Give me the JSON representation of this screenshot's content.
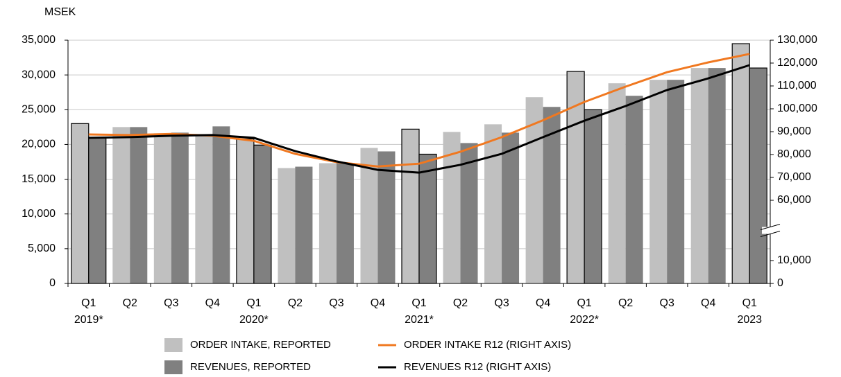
{
  "chart_data": {
    "type": "bar",
    "unit_label": "MSEK",
    "categories": [
      "Q1",
      "Q2",
      "Q3",
      "Q4",
      "Q1",
      "Q2",
      "Q3",
      "Q4",
      "Q1",
      "Q2",
      "Q3",
      "Q4",
      "Q1",
      "Q2",
      "Q3",
      "Q4",
      "Q1"
    ],
    "category_years": [
      "2019*",
      null,
      null,
      null,
      "2020*",
      null,
      null,
      null,
      "2021*",
      null,
      null,
      null,
      "2022*",
      null,
      null,
      null,
      "2023"
    ],
    "series": [
      {
        "name": "ORDER INTAKE, REPORTED",
        "type": "bar",
        "color": "#c0c0c0",
        "values": [
          23000,
          22500,
          21600,
          21500,
          20800,
          16600,
          17300,
          19500,
          22200,
          21800,
          22900,
          26800,
          30500,
          28800,
          29300,
          31000,
          34500
        ]
      },
      {
        "name": "REVENUES, REPORTED",
        "type": "bar",
        "color": "#808080",
        "values": [
          21000,
          22500,
          21700,
          22600,
          19900,
          16800,
          17300,
          19000,
          18600,
          20200,
          21700,
          25400,
          25000,
          27000,
          29300,
          31000,
          31000
        ]
      },
      {
        "name": "ORDER INTAKE R12 (RIGHT AXIS)",
        "type": "line",
        "axis": "y2",
        "color": "#f07820",
        "values": [
          88800,
          88500,
          89000,
          88200,
          86000,
          80300,
          76700,
          74800,
          76000,
          81200,
          87600,
          95000,
          103000,
          109700,
          116000,
          120300,
          124000
        ]
      },
      {
        "name": "REVENUES R12 (RIGHT AXIS)",
        "type": "line",
        "axis": "y2",
        "color": "#000000",
        "values": [
          87300,
          87600,
          88200,
          88500,
          87300,
          81500,
          77000,
          73300,
          72100,
          75500,
          80300,
          87600,
          94800,
          101200,
          108200,
          113300,
          119100
        ]
      }
    ],
    "ylim": [
      0,
      35000
    ],
    "yticks": [
      0,
      {
        "value": 5000,
        "label": "5,000"
      },
      {
        "value": 10000,
        "label": "10,000"
      },
      {
        "value": 15000,
        "label": "15,000"
      },
      {
        "value": 20000,
        "label": "20,000"
      },
      {
        "value": 25000,
        "label": "25,000"
      },
      {
        "value": 30000,
        "label": "30,000"
      },
      {
        "value": 35000,
        "label": "35,000"
      }
    ],
    "y2lim": [
      0,
      130000
    ],
    "y2break": [
      10000,
      60000
    ],
    "y2ticks": [
      0,
      {
        "value": 10000,
        "label": "10,000"
      },
      {
        "value": 60000,
        "label": "60,000"
      },
      {
        "value": 70000,
        "label": "70,000"
      },
      {
        "value": 80000,
        "label": "80,000"
      },
      {
        "value": 90000,
        "label": "90,000"
      },
      {
        "value": 100000,
        "label": "100,000"
      },
      {
        "value": 110000,
        "label": "110,000"
      },
      {
        "value": 120000,
        "label": "120,000"
      },
      {
        "value": 130000,
        "label": "130,000"
      }
    ],
    "grid": true
  }
}
